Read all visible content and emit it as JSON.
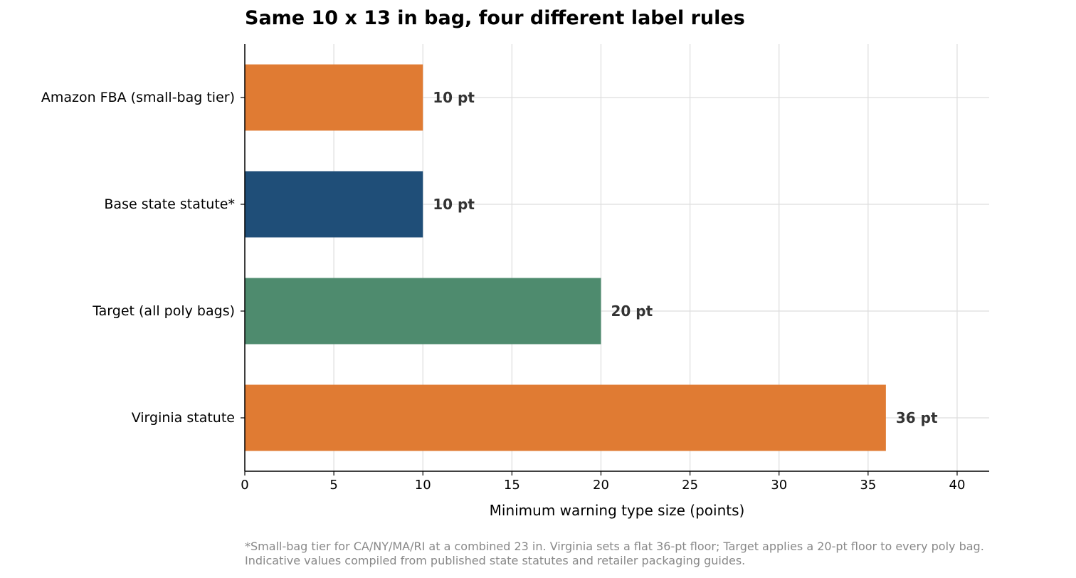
{
  "chart_data": {
    "type": "bar",
    "orientation": "horizontal",
    "title": "Same 10 x 13 in bag, four different label rules",
    "xlabel": "Minimum warning type size (points)",
    "ylabel": "",
    "xlim": [
      0,
      41.8
    ],
    "xticks": [
      0,
      5,
      10,
      15,
      20,
      25,
      30,
      35,
      40
    ],
    "grid": true,
    "legend": "none",
    "categories": [
      "Amazon FBA (small-bag tier)",
      "Base state statute*",
      "Target (all poly bags)",
      "Virginia statute"
    ],
    "values": [
      10,
      10,
      20,
      36
    ],
    "value_labels": [
      "10 pt",
      "10 pt",
      "20 pt",
      "36 pt"
    ],
    "colors": [
      "#e07b33",
      "#1f4e78",
      "#4e8b6e",
      "#e07b33"
    ],
    "footnote": [
      "*Small-bag tier for CA/NY/MA/RI at a combined 23 in. Virginia sets a flat 36-pt floor; Target applies a 20-pt floor to every poly bag.",
      "Indicative values compiled from published state statutes and retailer packaging guides."
    ]
  }
}
